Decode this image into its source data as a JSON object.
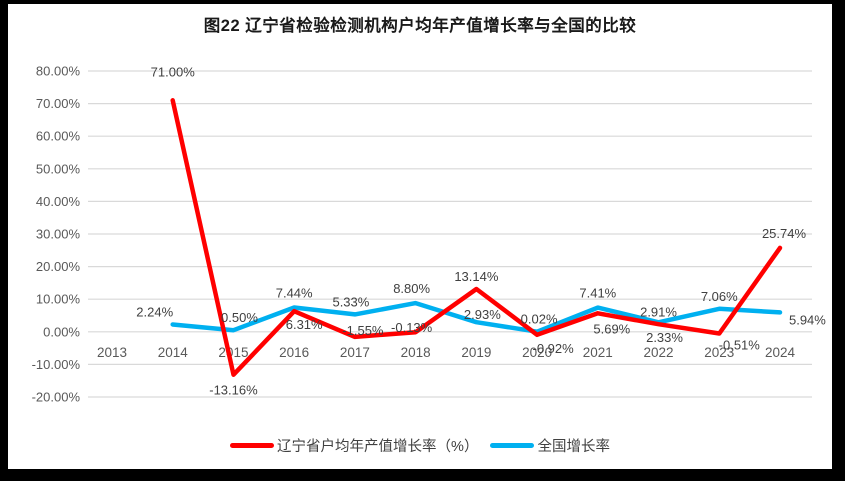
{
  "title": "图22  辽宁省检验检测机构户均年产值增长率与全国的比较",
  "colors": {
    "liaoning_line": "#ff0000",
    "national_line": "#00b0f0",
    "gridline": "#d9d9d9",
    "axis_text": "#595959",
    "data_label_text": "#404040",
    "frame": "#000000"
  },
  "chart_data": {
    "type": "line",
    "categories": [
      "2013",
      "2014",
      "2015",
      "2016",
      "2017",
      "2018",
      "2019",
      "2020",
      "2021",
      "2022",
      "2023",
      "2024"
    ],
    "series": [
      {
        "name": "辽宁省户均年产值增长率（%）",
        "color": "#ff0000",
        "values": [
          null,
          71.0,
          -13.16,
          6.31,
          -1.55,
          -0.13,
          13.14,
          -0.92,
          5.69,
          2.33,
          -0.51,
          25.74
        ]
      },
      {
        "name": "全国增长率",
        "color": "#00b0f0",
        "values": [
          null,
          2.24,
          0.5,
          7.44,
          5.33,
          8.8,
          2.93,
          0.02,
          7.41,
          2.91,
          7.06,
          5.94
        ]
      }
    ],
    "y_ticks": [
      "80.00%",
      "70.00%",
      "60.00%",
      "50.00%",
      "40.00%",
      "30.00%",
      "20.00%",
      "10.00%",
      "0.00%",
      "-10.00%",
      "-20.00%"
    ],
    "ylim": [
      -20,
      80
    ],
    "xlabel": "",
    "ylabel": "",
    "grid": true,
    "legend_position": "bottom",
    "data_labels_format": "0.00%"
  }
}
